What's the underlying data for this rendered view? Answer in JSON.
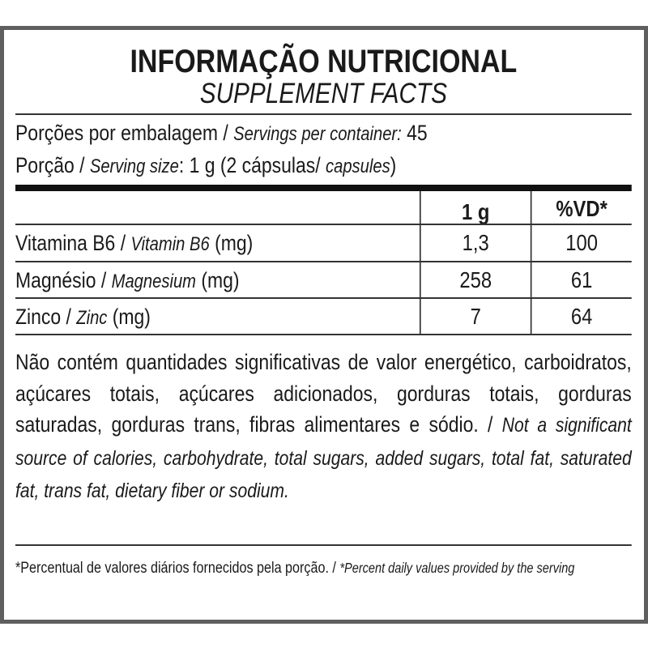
{
  "title": "INFORMAÇÃO NUTRICIONAL",
  "subtitle": "SUPPLEMENT FACTS",
  "servings": {
    "pt": "Porções por embalagem",
    "sep": " / ",
    "en": "Servings per container:",
    "value": " 45"
  },
  "serving_size": {
    "pt": "Porção",
    "sep": " / ",
    "en": "Serving size",
    "value": ": 1 g (2 cápsulas/ ",
    "en2": "capsules",
    "close": ")"
  },
  "table": {
    "headers": [
      "1 g",
      "%VD*"
    ],
    "rows": [
      {
        "pt": "Vitamina B6 / ",
        "en": "Vitamin B6",
        "unit": " (mg)",
        "amount": "1,3",
        "dv": "100"
      },
      {
        "pt": "Magnésio / ",
        "en": "Magnesium",
        "unit": " (mg)",
        "amount": "258",
        "dv": "61"
      },
      {
        "pt": "Zinco / ",
        "en": "Zinc",
        "unit": " (mg)",
        "amount": "7",
        "dv": "64"
      }
    ]
  },
  "note": {
    "pt": "Não contém quantidades significativas de valor energético, carboidratos, açúcares totais, açúcares adicionados, gorduras totais, gorduras saturadas, gorduras trans, fibras alimentares e sódio. / ",
    "en": "Not a significant source of calories, carbohydrate, total sugars, added sugars, total fat, saturated fat, trans fat, dietary fiber or sodium."
  },
  "footnote": {
    "pt": "*Percentual de valores diários fornecidos pela porção. / ",
    "en": "*Percent daily values provided by the serving"
  }
}
